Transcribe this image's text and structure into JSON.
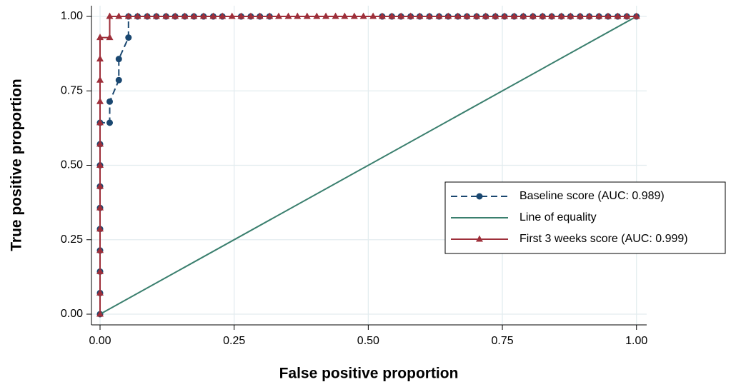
{
  "chart_data": {
    "type": "line",
    "xlabel": "False positive proportion",
    "ylabel": "True positive proportion",
    "xlim": [
      -0.016,
      1.019
    ],
    "ylim": [
      -0.036,
      1.036
    ],
    "xticks": [
      {
        "value": 0,
        "label": "0.00"
      },
      {
        "value": 0.25,
        "label": "0.25"
      },
      {
        "value": 0.5,
        "label": "0.50"
      },
      {
        "value": 0.75,
        "label": "0.75"
      },
      {
        "value": 1,
        "label": "1.00"
      }
    ],
    "yticks": [
      {
        "value": 0,
        "label": "0.00"
      },
      {
        "value": 0.25,
        "label": "0.25"
      },
      {
        "value": 0.5,
        "label": "0.50"
      },
      {
        "value": 0.75,
        "label": "0.75"
      },
      {
        "value": 1,
        "label": "1.00"
      }
    ],
    "grid": true,
    "legend": "right",
    "series": [
      {
        "name": "Baseline score (AUC: 0.989)",
        "color": "#1a4770",
        "marker": "circle",
        "dashed": true,
        "x": [
          0,
          0,
          0,
          0,
          0,
          0,
          0,
          0,
          0,
          0,
          0.018,
          0.018,
          0.035,
          0.035,
          0.053,
          0.053,
          0.07,
          0.088,
          0.105,
          0.123,
          0.14,
          0.158,
          0.175,
          0.193,
          0.211,
          0.228,
          0.263,
          0.281,
          0.298,
          0.316,
          0.526,
          0.544,
          0.561,
          0.579,
          0.596,
          0.614,
          0.632,
          0.649,
          0.667,
          0.684,
          0.702,
          0.719,
          0.737,
          0.754,
          0.772,
          0.789,
          0.807,
          0.825,
          0.842,
          0.86,
          0.877,
          0.895,
          0.912,
          0.93,
          0.947,
          0.965,
          0.982,
          1
        ],
        "values": [
          0,
          0.071,
          0.143,
          0.214,
          0.286,
          0.357,
          0.429,
          0.5,
          0.571,
          0.643,
          0.643,
          0.714,
          0.786,
          0.857,
          0.929,
          1,
          1,
          1,
          1,
          1,
          1,
          1,
          1,
          1,
          1,
          1,
          1,
          1,
          1,
          1,
          1,
          1,
          1,
          1,
          1,
          1,
          1,
          1,
          1,
          1,
          1,
          1,
          1,
          1,
          1,
          1,
          1,
          1,
          1,
          1,
          1,
          1,
          1,
          1,
          1,
          1,
          1,
          1
        ]
      },
      {
        "name": "Line of equality",
        "color": "#3a7f6e",
        "x": [
          0,
          1
        ],
        "values": [
          0,
          1
        ]
      },
      {
        "name": "First 3 weeks score (AUC: 0.999)",
        "color": "#9e2f3a",
        "marker": "triangle",
        "x": [
          0,
          0,
          0,
          0,
          0,
          0,
          0,
          0,
          0,
          0,
          0,
          0,
          0,
          0,
          0.018,
          0.018,
          0.035,
          0.053,
          0.07,
          0.088,
          0.105,
          0.123,
          0.14,
          0.158,
          0.175,
          0.193,
          0.211,
          0.228,
          0.246,
          0.263,
          0.281,
          0.298,
          0.316,
          0.333,
          0.351,
          0.368,
          0.386,
          0.404,
          0.421,
          0.439,
          0.456,
          0.474,
          0.491,
          0.509,
          0.526,
          0.544,
          0.561,
          0.579,
          0.596,
          0.614,
          0.632,
          0.649,
          0.667,
          0.684,
          0.702,
          0.719,
          0.737,
          0.754,
          0.772,
          0.789,
          0.807,
          0.825,
          0.842,
          0.86,
          0.877,
          0.895,
          0.912,
          0.93,
          0.947,
          0.965,
          0.982,
          1
        ],
        "values": [
          0,
          0.071,
          0.143,
          0.214,
          0.286,
          0.357,
          0.429,
          0.5,
          0.571,
          0.643,
          0.714,
          0.786,
          0.857,
          0.929,
          0.929,
          1,
          1,
          1,
          1,
          1,
          1,
          1,
          1,
          1,
          1,
          1,
          1,
          1,
          1,
          1,
          1,
          1,
          1,
          1,
          1,
          1,
          1,
          1,
          1,
          1,
          1,
          1,
          1,
          1,
          1,
          1,
          1,
          1,
          1,
          1,
          1,
          1,
          1,
          1,
          1,
          1,
          1,
          1,
          1,
          1,
          1,
          1,
          1,
          1,
          1,
          1,
          1,
          1,
          1,
          1,
          1,
          1
        ]
      }
    ]
  }
}
